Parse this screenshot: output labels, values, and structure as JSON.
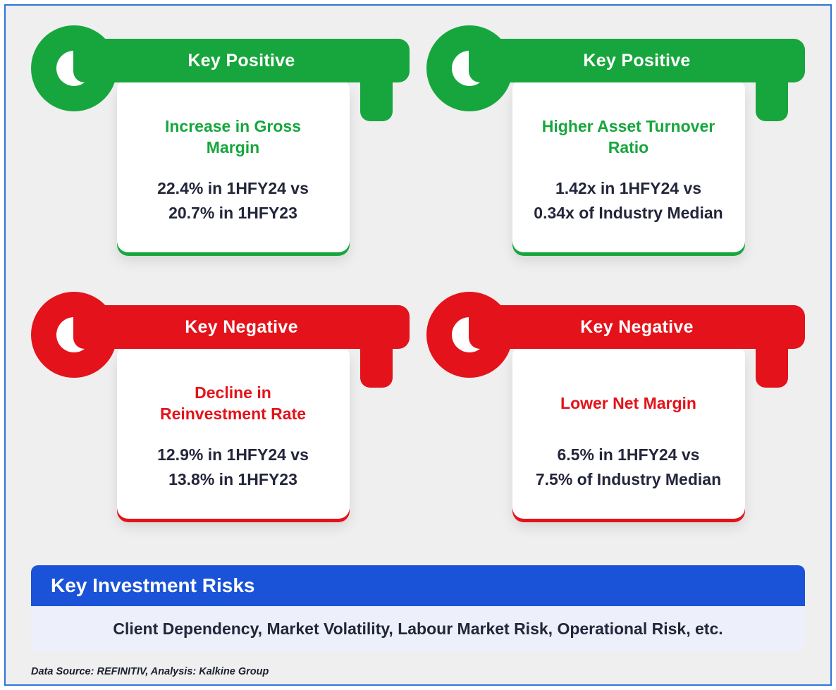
{
  "cards": [
    {
      "type": "positive",
      "header": "Key Positive",
      "title_lines": [
        "Increase in Gross",
        "Margin"
      ],
      "detail_lines": [
        "22.4% in 1HFY24 vs",
        "20.7% in 1HFY23"
      ]
    },
    {
      "type": "positive",
      "header": "Key Positive",
      "title_lines": [
        "Higher Asset Turnover",
        "Ratio"
      ],
      "detail_lines": [
        "1.42x in 1HFY24 vs",
        "0.34x of Industry Median"
      ]
    },
    {
      "type": "negative",
      "header": "Key Negative",
      "title_lines": [
        "Decline in",
        "Reinvestment Rate"
      ],
      "detail_lines": [
        "12.9% in 1HFY24 vs",
        "13.8% in 1HFY23"
      ]
    },
    {
      "type": "negative",
      "header": "Key Negative",
      "title_lines": [
        "Lower Net Margin",
        ""
      ],
      "detail_lines": [
        "6.5% in 1HFY24 vs",
        "7.5% of Industry Median"
      ]
    }
  ],
  "risks": {
    "header": "Key Investment Risks",
    "text": "Client Dependency, Market Volatility, Labour Market Risk, Operational Risk, etc."
  },
  "footer": "Data Source: REFINITIV, Analysis: Kalkine Group",
  "colors": {
    "positive_green": "#17a63d",
    "negative_red": "#e4121a",
    "risk_header_blue": "#1a53d8",
    "risk_body_lavender": "#edeffa",
    "text_dark": "#23263a",
    "background_gray": "#efefef",
    "frame_border_blue": "#2e75d8"
  }
}
